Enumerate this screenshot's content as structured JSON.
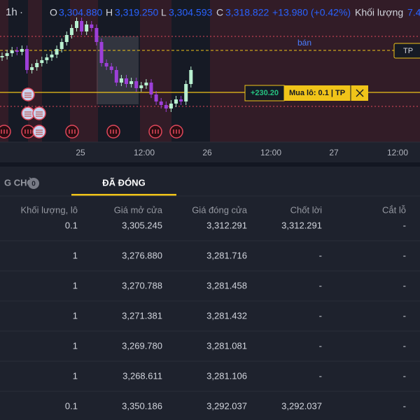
{
  "toolbar": {
    "interval": "1h",
    "dot": "·",
    "o_label": "O",
    "open": "3,304.880",
    "h_label": "H",
    "high": "3,319.250",
    "l_label": "L",
    "low": "3,304.593",
    "c_label": "C",
    "close": "3,318.822",
    "change": "+13.980 (+0.42%)",
    "volume_label": "Khối lượng",
    "volume": "7.4"
  },
  "chart": {
    "x_labels": [
      "25",
      "12:00",
      "26",
      "12:00",
      "27",
      "12:00"
    ],
    "sell_label": "bán",
    "tp_tag": "TP",
    "pnl": "+230.20",
    "position": "Mua lô: 0.1 | TP"
  },
  "tabs": [
    {
      "label": "G CHỜ",
      "badge": "0"
    },
    {
      "label": "ĐÃ ĐÓNG"
    }
  ],
  "table": {
    "headers": [
      "Khối lượng, lô",
      "Giá mở cửa",
      "Giá đóng cửa",
      "Chốt lời",
      "Cắt lỗ"
    ],
    "rows": [
      [
        "0.1",
        "3,305.245",
        "3,312.291",
        "3,312.291",
        "-"
      ],
      [
        "1",
        "3,276.880",
        "3,281.716",
        "-",
        "-"
      ],
      [
        "1",
        "3,270.788",
        "3,281.458",
        "-",
        "-"
      ],
      [
        "1",
        "3,271.381",
        "3,281.432",
        "-",
        "-"
      ],
      [
        "1",
        "3,269.780",
        "3,281.081",
        "-",
        "-"
      ],
      [
        "1",
        "3,268.611",
        "3,281.106",
        "-",
        "-"
      ],
      [
        "0.1",
        "3,350.186",
        "3,292.037",
        "3,292.037",
        "-"
      ]
    ]
  }
}
